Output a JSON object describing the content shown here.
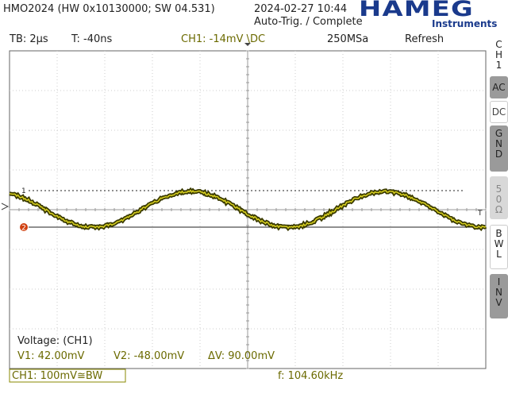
{
  "header": {
    "device": "HMO2024 (HW 0x10130000; SW 04.531)",
    "datetime": "2024-02-27 10:44",
    "trigger_state": "Auto-Trig. / Complete",
    "logo": "HAMEG",
    "logo_sub": "Instruments"
  },
  "status": {
    "timebase": "TB: 2µs",
    "trigger_time": "T: -40ns",
    "channel": "CH1: -14mV \\DC",
    "sample_rate": "250MSa",
    "mode": "Refresh"
  },
  "side_menu": {
    "title": "CH1",
    "buttons": [
      "AC",
      "DC",
      "GND",
      "50Ω",
      "BWL",
      "INV"
    ]
  },
  "markers": {
    "cursor1": "1",
    "cursor2": "2",
    "trigger": "T"
  },
  "measurement": {
    "title": "Voltage: (CH1)",
    "v1": "V1: 42.00mV",
    "v2": "V2: -48.00mV",
    "delta": "ΔV: 90.00mV"
  },
  "footer": {
    "channel": "CH1: 100mV≅BW",
    "frequency": "f: 104.60kHz"
  }
}
